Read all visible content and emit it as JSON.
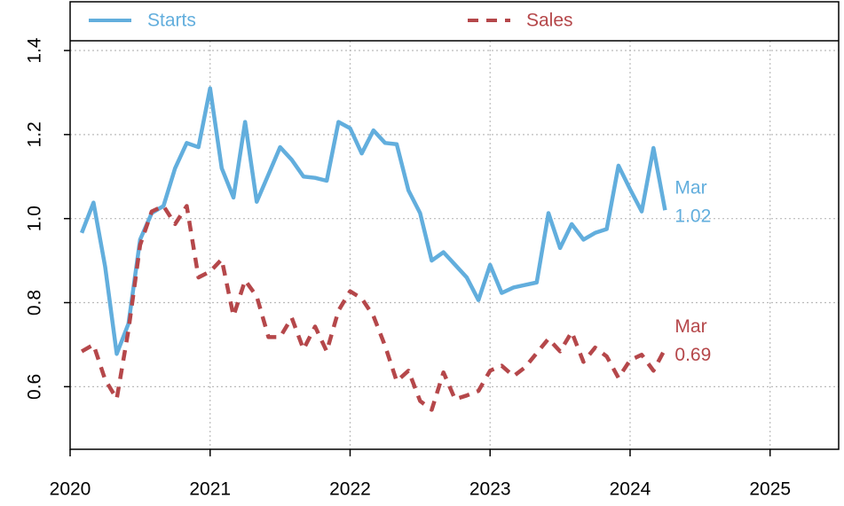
{
  "chart_data": {
    "type": "line",
    "x": [
      2020.083,
      2020.167,
      2020.25,
      2020.333,
      2020.417,
      2020.5,
      2020.583,
      2020.667,
      2020.75,
      2020.833,
      2020.917,
      2021,
      2021.083,
      2021.167,
      2021.25,
      2021.333,
      2021.417,
      2021.5,
      2021.583,
      2021.667,
      2021.75,
      2021.833,
      2021.917,
      2022,
      2022.083,
      2022.167,
      2022.25,
      2022.333,
      2022.417,
      2022.5,
      2022.583,
      2022.667,
      2022.75,
      2022.833,
      2022.917,
      2023,
      2023.083,
      2023.167,
      2023.25,
      2023.333,
      2023.417,
      2023.5,
      2023.583,
      2023.667,
      2023.75,
      2023.833,
      2023.917,
      2024,
      2024.083,
      2024.167,
      2024.25
    ],
    "series": [
      {
        "name": "Starts",
        "color": "#62aedd",
        "linestyle": "solid",
        "values": [
          0.966,
          1.038,
          0.886,
          0.678,
          0.75,
          0.95,
          1.013,
          1.03,
          1.12,
          1.18,
          1.17,
          1.31,
          1.12,
          1.05,
          1.23,
          1.04,
          1.105,
          1.17,
          1.14,
          1.1,
          1.097,
          1.09,
          1.23,
          1.215,
          1.155,
          1.21,
          1.18,
          1.177,
          1.067,
          1.013,
          0.9,
          0.92,
          0.89,
          0.86,
          0.806,
          0.89,
          0.823,
          0.836,
          0.842,
          0.848,
          1.013,
          0.93,
          0.987,
          0.95,
          0.966,
          0.975,
          1.126,
          1.07,
          1.017,
          1.168,
          1.02
        ]
      },
      {
        "name": "Sales",
        "color": "#b5474a",
        "linestyle": "dashed",
        "values": [
          0.684,
          0.7,
          0.617,
          0.571,
          0.735,
          0.937,
          1.017,
          1.03,
          0.987,
          1.03,
          0.86,
          0.874,
          0.903,
          0.768,
          0.853,
          0.815,
          0.718,
          0.718,
          0.764,
          0.689,
          0.743,
          0.684,
          0.781,
          0.827,
          0.81,
          0.768,
          0.697,
          0.613,
          0.638,
          0.566,
          0.545,
          0.634,
          0.57,
          0.579,
          0.59,
          0.638,
          0.65,
          0.625,
          0.646,
          0.68,
          0.714,
          0.684,
          0.73,
          0.659,
          0.693,
          0.672,
          0.621,
          0.663,
          0.676,
          0.638,
          0.69
        ]
      }
    ],
    "annotations": [
      [
        "Mar",
        "1.02"
      ],
      [
        "Mar",
        "0.69"
      ]
    ],
    "xlim": [
      2020,
      2025.49
    ],
    "xticks": [
      2020,
      2021,
      2022,
      2023,
      2024,
      2025
    ],
    "ylim": [
      0.451,
      1.516
    ],
    "yticks": [
      0.6,
      0.8,
      {
        "value": 1,
        "label": "1.0"
      },
      1.2,
      1.4
    ],
    "grid": true,
    "legend": "top"
  }
}
